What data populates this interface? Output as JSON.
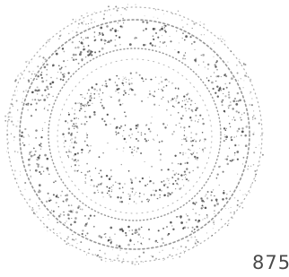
{
  "page_number": "875"
}
